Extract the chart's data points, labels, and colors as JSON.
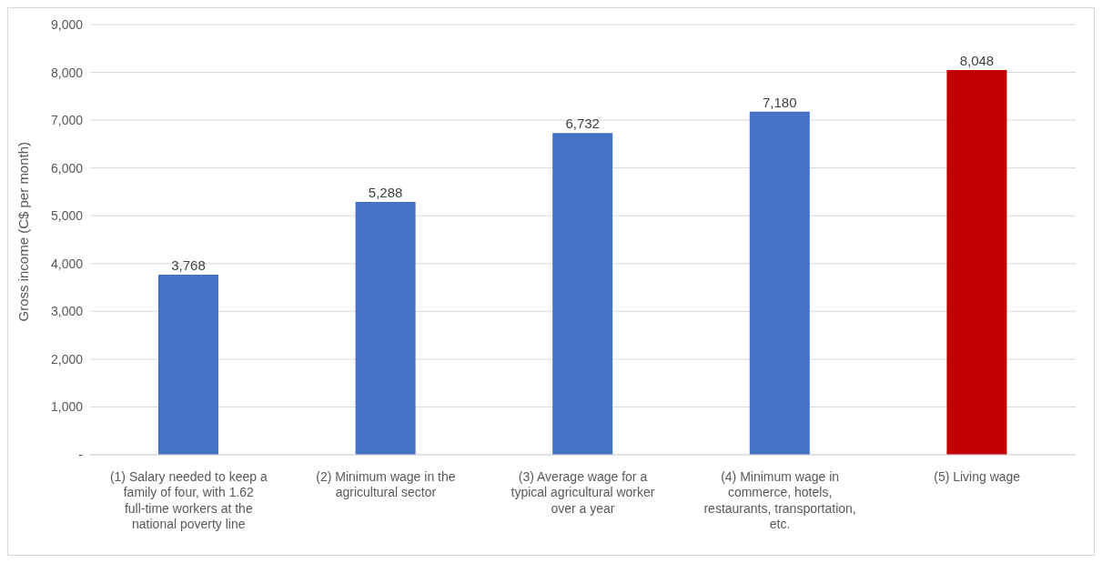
{
  "chart_data": {
    "type": "bar",
    "ylabel": "Gross income (C$ per month)",
    "categories": [
      "(1) Salary needed to keep a family of four, with 1.62 full-time workers at the national poverty line",
      "(2) Minimum wage in the agricultural sector",
      "(3) Average wage for a typical agricultural worker over a year",
      "(4) Minimum wage in commerce, hotels, restaurants, transportation, etc.",
      "(5) Living wage"
    ],
    "values": [
      3768,
      5288,
      6732,
      7180,
      8048
    ],
    "colors": [
      "#4472c4",
      "#4472c4",
      "#4472c4",
      "#4472c4",
      "#c00000"
    ],
    "ylim": [
      0,
      9000
    ],
    "value_labels": [
      "3,768",
      "5,288",
      "6,732",
      "7,180",
      "8,048"
    ],
    "yticks": [
      {
        "value": 0,
        "label": "-"
      },
      {
        "value": 1000,
        "label": "1,000"
      },
      {
        "value": 2000,
        "label": "2,000"
      },
      {
        "value": 3000,
        "label": "3,000"
      },
      {
        "value": 4000,
        "label": "4,000"
      },
      {
        "value": 5000,
        "label": "5,000"
      },
      {
        "value": 6000,
        "label": "6,000"
      },
      {
        "value": 7000,
        "label": "7,000"
      },
      {
        "value": 8000,
        "label": "8,000"
      },
      {
        "value": 9000,
        "label": "9,000"
      }
    ],
    "grid": "y"
  }
}
